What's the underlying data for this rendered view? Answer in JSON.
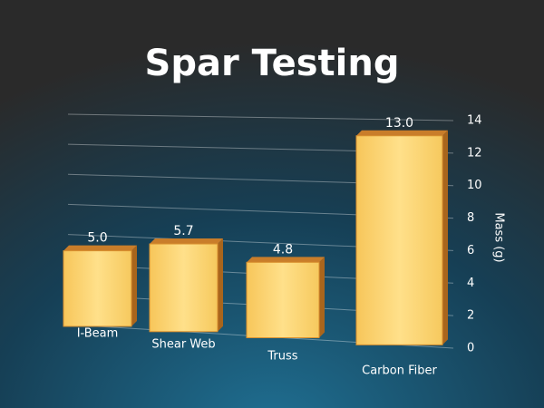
{
  "chart_data": {
    "type": "bar",
    "title": "Spar Testing",
    "categories": [
      "I-Beam",
      "Shear Web",
      "Truss",
      "Carbon Fiber"
    ],
    "values": [
      5.0,
      5.7,
      4.8,
      13.0
    ],
    "value_labels": [
      "5.0",
      "5.7",
      "4.8",
      "13.0"
    ],
    "color": "#ffd66e",
    "y_label": "Mass (g)",
    "ylim": [
      0,
      14
    ],
    "yticks": [
      0,
      2,
      4,
      6,
      8,
      10,
      12,
      14
    ],
    "grid": true
  }
}
